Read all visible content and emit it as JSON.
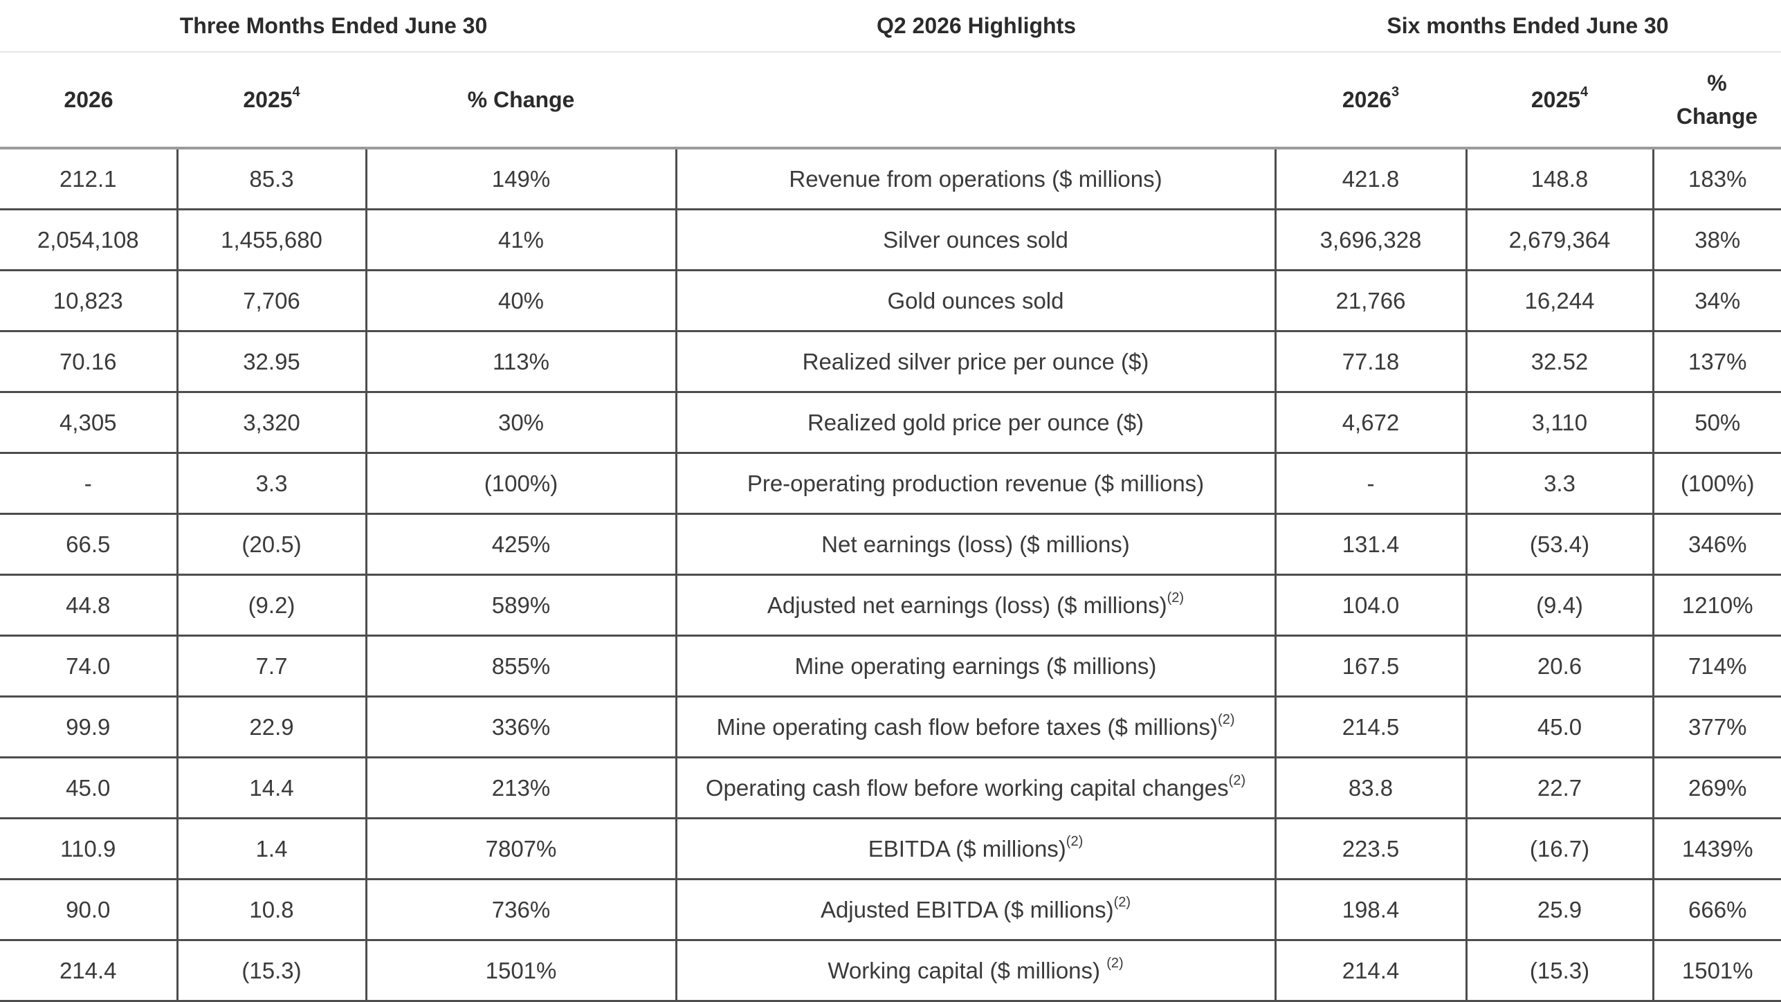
{
  "group_headers": {
    "three_months": "Three Months Ended June 30",
    "highlights": "Q2 2026 Highlights",
    "six_months": "Six months Ended June 30"
  },
  "columns": [
    {
      "label": "2026",
      "sup": ""
    },
    {
      "label": "2025",
      "sup": "4"
    },
    {
      "label": "% Change",
      "sup": ""
    },
    {
      "label": "",
      "sup": ""
    },
    {
      "label": "2026",
      "sup": "3"
    },
    {
      "label": "2025",
      "sup": "4"
    },
    {
      "label_line1": "%",
      "label_line2": "Change"
    }
  ],
  "rows": [
    {
      "q_2026": "212.1",
      "q_2025": "85.3",
      "q_change": "149%",
      "metric": "Revenue from operations ($ millions)",
      "sup": "",
      "h_2026": "421.8",
      "h_2025": "148.8",
      "h_change": "183%"
    },
    {
      "q_2026": "2,054,108",
      "q_2025": "1,455,680",
      "q_change": "41%",
      "metric": "Silver ounces sold",
      "sup": "",
      "h_2026": "3,696,328",
      "h_2025": "2,679,364",
      "h_change": "38%"
    },
    {
      "q_2026": "10,823",
      "q_2025": "7,706",
      "q_change": "40%",
      "metric": "Gold ounces sold",
      "sup": "",
      "h_2026": "21,766",
      "h_2025": "16,244",
      "h_change": "34%"
    },
    {
      "q_2026": "70.16",
      "q_2025": "32.95",
      "q_change": "113%",
      "metric": "Realized silver price per ounce ($)",
      "sup": "",
      "h_2026": "77.18",
      "h_2025": "32.52",
      "h_change": "137%"
    },
    {
      "q_2026": "4,305",
      "q_2025": "3,320",
      "q_change": "30%",
      "metric": "Realized gold price per ounce ($)",
      "sup": "",
      "h_2026": "4,672",
      "h_2025": "3,110",
      "h_change": "50%"
    },
    {
      "q_2026": "-",
      "q_2025": "3.3",
      "q_change": "(100%)",
      "metric": "Pre-operating production revenue ($ millions)",
      "sup": "",
      "h_2026": "-",
      "h_2025": "3.3",
      "h_change": "(100%)"
    },
    {
      "q_2026": "66.5",
      "q_2025": "(20.5)",
      "q_change": "425%",
      "metric": "Net earnings (loss) ($ millions)",
      "sup": "",
      "h_2026": "131.4",
      "h_2025": "(53.4)",
      "h_change": "346%"
    },
    {
      "q_2026": "44.8",
      "q_2025": "(9.2)",
      "q_change": "589%",
      "metric": "Adjusted net earnings (loss) ($ millions)",
      "sup": "(2)",
      "h_2026": "104.0",
      "h_2025": "(9.4)",
      "h_change": "1210%"
    },
    {
      "q_2026": "74.0",
      "q_2025": "7.7",
      "q_change": "855%",
      "metric": "Mine operating earnings ($ millions)",
      "sup": "",
      "h_2026": "167.5",
      "h_2025": "20.6",
      "h_change": "714%"
    },
    {
      "q_2026": "99.9",
      "q_2025": "22.9",
      "q_change": "336%",
      "metric": "Mine operating cash flow before taxes ($ millions)",
      "sup": "(2)",
      "h_2026": "214.5",
      "h_2025": "45.0",
      "h_change": "377%"
    },
    {
      "q_2026": "45.0",
      "q_2025": "14.4",
      "q_change": "213%",
      "metric": "Operating cash flow before working capital changes",
      "sup": "(2)",
      "h_2026": "83.8",
      "h_2025": "22.7",
      "h_change": "269%"
    },
    {
      "q_2026": "110.9",
      "q_2025": "1.4",
      "q_change": "7807%",
      "metric": "EBITDA ($ millions)",
      "sup": "(2)",
      "h_2026": "223.5",
      "h_2025": "(16.7)",
      "h_change": "1439%"
    },
    {
      "q_2026": "90.0",
      "q_2025": "10.8",
      "q_change": "736%",
      "metric": "Adjusted EBITDA ($ millions)",
      "sup": "(2)",
      "h_2026": "198.4",
      "h_2025": "25.9",
      "h_change": "666%"
    },
    {
      "q_2026": "214.4",
      "q_2025": "(15.3)",
      "q_change": "1501%",
      "metric": "Working capital ($ millions) ",
      "sup": "(2)",
      "h_2026": "214.4",
      "h_2025": "(15.3)",
      "h_change": "1501%"
    }
  ]
}
